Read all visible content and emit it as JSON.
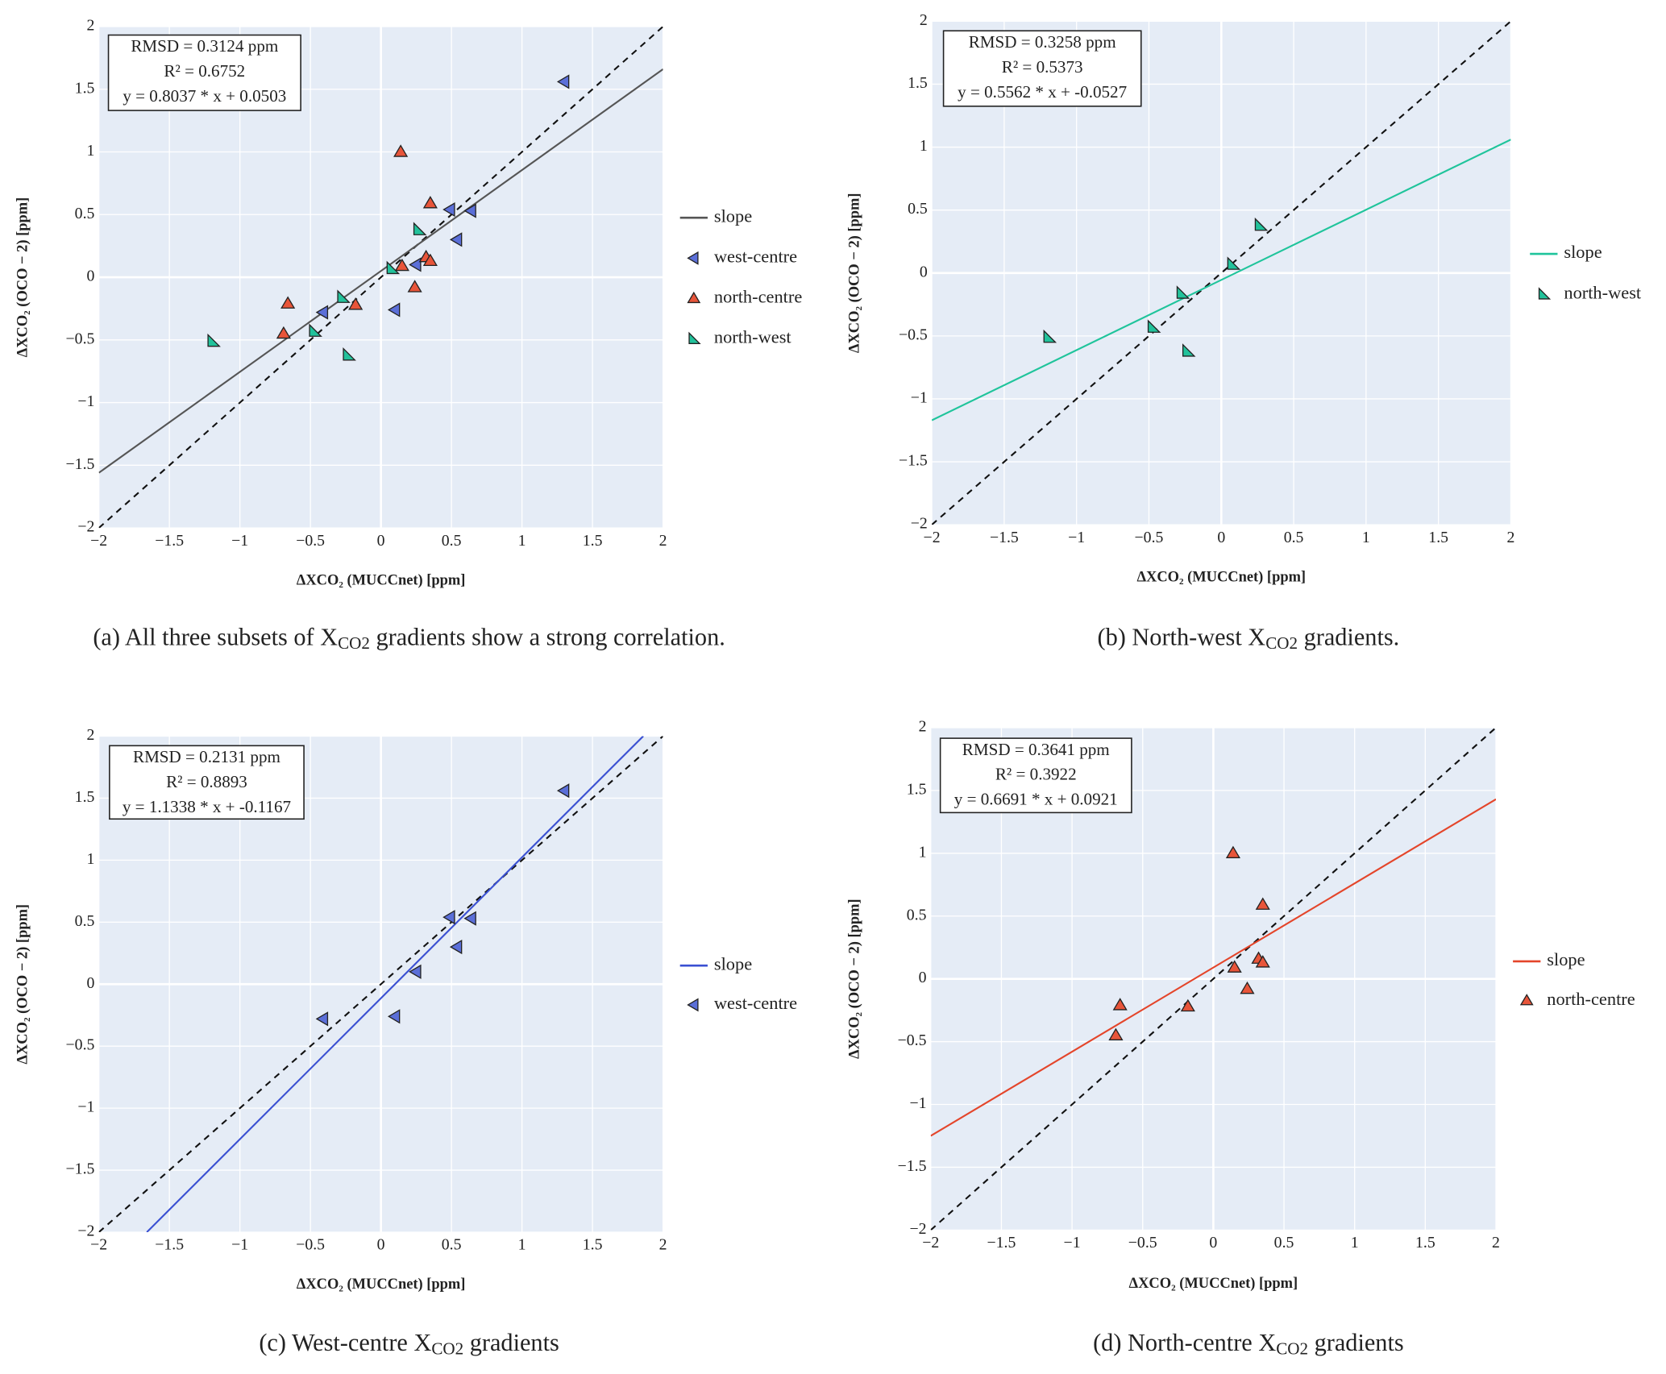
{
  "chart_data": [
    {
      "type": "scatter",
      "stats": [
        "RMSD = 0.3124 ppm",
        "R² = 0.6752",
        "y = 0.8037 * x + 0.0503"
      ],
      "x_label": "ΔXCO₂ (MUCCnet)  [ppm]",
      "y_label": "ΔXCO₂ (OCO − 2)  [ppm]",
      "caption": [
        "(a) All three subsets of X",
        "CO2",
        " gradients show a strong correlation."
      ],
      "xlim": [
        -2,
        2
      ],
      "ylim": [
        -2,
        2
      ],
      "xticks": [
        {
          "value": -2,
          "label": "−2"
        },
        {
          "value": -1.5,
          "label": "−1.5"
        },
        {
          "value": -1,
          "label": "−1"
        },
        {
          "value": -0.5,
          "label": "−0.5"
        },
        0,
        0.5,
        1,
        1.5,
        2
      ],
      "yticks": [
        {
          "value": -2,
          "label": "−2"
        },
        {
          "value": -1.5,
          "label": "−1.5"
        },
        {
          "value": -1,
          "label": "−1"
        },
        {
          "value": -0.5,
          "label": "−0.5"
        },
        0,
        0.5,
        1,
        1.5,
        2
      ],
      "grid": true,
      "series": [
        {
          "name": "slope",
          "mode": "line",
          "color": "#555555",
          "x": [
            -2,
            2
          ],
          "values": [
            -1.56,
            1.66
          ]
        },
        {
          "name": "west-centre",
          "mode": "markers",
          "marker": "triangle-left",
          "color": "#5b6fd8",
          "x": [
            1.3,
            0.49,
            0.64,
            0.54,
            0.25,
            -0.41,
            0.1
          ],
          "values": [
            1.56,
            0.54,
            0.53,
            0.3,
            0.1,
            -0.28,
            -0.26
          ]
        },
        {
          "name": "north-centre",
          "mode": "markers",
          "marker": "triangle-up",
          "color": "#e8553a",
          "x": [
            0.14,
            0.35,
            0.32,
            0.35,
            0.15,
            0.24,
            -0.18,
            -0.66,
            -0.69
          ],
          "values": [
            1.0,
            0.59,
            0.16,
            0.13,
            0.09,
            -0.08,
            -0.22,
            -0.21,
            -0.45
          ]
        },
        {
          "name": "north-west",
          "mode": "markers",
          "marker": "triangle-sw",
          "color": "#22c29b",
          "x": [
            0.27,
            0.08,
            -0.27,
            -0.47,
            -0.23,
            -1.19
          ],
          "values": [
            0.38,
            0.07,
            -0.16,
            -0.43,
            -0.62,
            -0.51
          ]
        }
      ]
    },
    {
      "type": "scatter",
      "stats": [
        "RMSD = 0.3258 ppm",
        "R² = 0.5373",
        "y = 0.5562 * x + -0.0527"
      ],
      "x_label": "ΔXCO₂ (MUCCnet)  [ppm]",
      "y_label": "ΔXCO₂ (OCO − 2)  [ppm]",
      "caption": [
        "(b) North-west X",
        "CO2",
        " gradients."
      ],
      "xlim": [
        -2,
        2
      ],
      "ylim": [
        -2,
        2
      ],
      "xticks": [
        {
          "value": -2,
          "label": "−2"
        },
        {
          "value": -1.5,
          "label": "−1.5"
        },
        {
          "value": -1,
          "label": "−1"
        },
        {
          "value": -0.5,
          "label": "−0.5"
        },
        0,
        0.5,
        1,
        1.5,
        2
      ],
      "yticks": [
        {
          "value": -2,
          "label": "−2"
        },
        {
          "value": -1.5,
          "label": "−1.5"
        },
        {
          "value": -1,
          "label": "−1"
        },
        {
          "value": -0.5,
          "label": "−0.5"
        },
        0,
        0.5,
        1,
        1.5,
        2
      ],
      "grid": true,
      "series": [
        {
          "name": "slope",
          "mode": "line",
          "color": "#1fc49b",
          "x": [
            -2,
            2
          ],
          "values": [
            -1.17,
            1.06
          ]
        },
        {
          "name": "north-west",
          "mode": "markers",
          "marker": "triangle-sw",
          "color": "#22c29b",
          "x": [
            0.27,
            0.08,
            -0.27,
            -0.47,
            -0.23,
            -1.19
          ],
          "values": [
            0.38,
            0.07,
            -0.16,
            -0.43,
            -0.62,
            -0.51
          ]
        }
      ]
    },
    {
      "type": "scatter",
      "stats": [
        "RMSD = 0.2131 ppm",
        "R² = 0.8893",
        "y = 1.1338 * x + -0.1167"
      ],
      "x_label": "ΔXCO₂ (MUCCnet)  [ppm]",
      "y_label": "ΔXCO₂ (OCO − 2)  [ppm]",
      "caption": [
        "(c) West-centre X",
        "CO2",
        " gradients"
      ],
      "xlim": [
        -2,
        2
      ],
      "ylim": [
        -2,
        2
      ],
      "xticks": [
        {
          "value": -2,
          "label": "−2"
        },
        {
          "value": -1.5,
          "label": "−1.5"
        },
        {
          "value": -1,
          "label": "−1"
        },
        {
          "value": -0.5,
          "label": "−0.5"
        },
        0,
        0.5,
        1,
        1.5,
        2
      ],
      "yticks": [
        {
          "value": -2,
          "label": "−2"
        },
        {
          "value": -1.5,
          "label": "−1.5"
        },
        {
          "value": -1,
          "label": "−1"
        },
        {
          "value": -0.5,
          "label": "−0.5"
        },
        0,
        0.5,
        1,
        1.5,
        2
      ],
      "grid": true,
      "series": [
        {
          "name": "slope",
          "mode": "line",
          "color": "#3a50d2",
          "x": [
            -1.66,
            1.86
          ],
          "values": [
            -2,
            2
          ]
        },
        {
          "name": "west-centre",
          "mode": "markers",
          "marker": "triangle-left",
          "color": "#5b6fd8",
          "x": [
            1.3,
            0.49,
            0.64,
            0.54,
            0.25,
            -0.41,
            0.1
          ],
          "values": [
            1.56,
            0.54,
            0.53,
            0.3,
            0.1,
            -0.28,
            -0.26
          ]
        }
      ]
    },
    {
      "type": "scatter",
      "stats": [
        "RMSD = 0.3641 ppm",
        "R² = 0.3922",
        "y = 0.6691 * x + 0.0921"
      ],
      "x_label": "ΔXCO₂ (MUCCnet)  [ppm]",
      "y_label": "ΔXCO₂ (OCO − 2)  [ppm]",
      "caption": [
        "(d) North-centre X",
        "CO2",
        " gradients"
      ],
      "xlim": [
        -2,
        2
      ],
      "ylim": [
        -2,
        2
      ],
      "xticks": [
        {
          "value": -2,
          "label": "−2"
        },
        {
          "value": -1.5,
          "label": "−1.5"
        },
        {
          "value": -1,
          "label": "−1"
        },
        {
          "value": -0.5,
          "label": "−0.5"
        },
        0,
        0.5,
        1,
        1.5,
        2
      ],
      "yticks": [
        {
          "value": -2,
          "label": "−2"
        },
        {
          "value": -1.5,
          "label": "−1.5"
        },
        {
          "value": -1,
          "label": "−1"
        },
        {
          "value": -0.5,
          "label": "−0.5"
        },
        0,
        0.5,
        1,
        1.5,
        2
      ],
      "grid": true,
      "series": [
        {
          "name": "slope",
          "mode": "line",
          "color": "#e4452a",
          "x": [
            -2,
            2
          ],
          "values": [
            -1.25,
            1.43
          ]
        },
        {
          "name": "north-centre",
          "mode": "markers",
          "marker": "triangle-up",
          "color": "#e8553a",
          "x": [
            0.14,
            0.35,
            0.32,
            0.35,
            0.15,
            0.24,
            -0.18,
            -0.66,
            -0.69
          ],
          "values": [
            1.0,
            0.59,
            0.16,
            0.13,
            0.09,
            -0.08,
            -0.22,
            -0.21,
            -0.45
          ]
        }
      ]
    }
  ]
}
